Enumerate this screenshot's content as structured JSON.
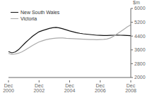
{
  "chart_data": {
    "type": "line",
    "ylabel": "$m",
    "categories": [
      "Dec\n2000",
      null,
      null,
      null,
      null,
      null,
      null,
      null,
      null,
      "Dec\n2002",
      null,
      null,
      null,
      null,
      null,
      null,
      null,
      null,
      "Dec\n2004",
      null,
      null,
      null,
      null,
      null,
      null,
      null,
      null,
      "Dec\n2006",
      null,
      null,
      null,
      null,
      null,
      null,
      null,
      null,
      "Dec\n2008"
    ],
    "series": [
      {
        "name": "New South Wales",
        "color": "#111111",
        "values": [
          3500,
          3430,
          3480,
          3620,
          3820,
          4020,
          4200,
          4380,
          4520,
          4650,
          4720,
          4780,
          4840,
          4880,
          4900,
          4870,
          4820,
          4760,
          4700,
          4650,
          4600,
          4560,
          4530,
          4510,
          4490,
          4470,
          4450,
          4440,
          4430,
          4430,
          4440,
          4450,
          4460,
          4450,
          4440,
          4430,
          4420
        ]
      },
      {
        "name": "Victoria",
        "color": "#aaaaaa",
        "values": [
          3400,
          3340,
          3360,
          3410,
          3490,
          3600,
          3720,
          3850,
          3960,
          4060,
          4130,
          4190,
          4230,
          4260,
          4280,
          4290,
          4290,
          4270,
          4260,
          4250,
          4240,
          4230,
          4220,
          4210,
          4200,
          4200,
          4190,
          4200,
          4210,
          4230,
          4290,
          4400,
          4530,
          4660,
          4800,
          4940,
          5050
        ]
      }
    ],
    "ylim": [
      2000,
      6000
    ],
    "yticks": [
      2000,
      2800,
      3600,
      4400,
      5200,
      6000
    ],
    "grid": false,
    "legend": "upper left"
  }
}
